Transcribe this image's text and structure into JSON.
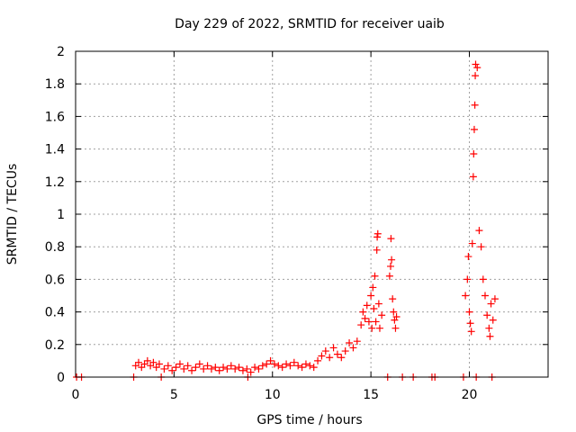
{
  "chart_data": {
    "type": "scatter",
    "title": "Day 229 of 2022, SRMTID for receiver uaib",
    "xlabel": "GPS time / hours",
    "ylabel": "SRMTID / TECUs",
    "xlim": [
      0,
      24
    ],
    "ylim": [
      0,
      2
    ],
    "x_ticks": [
      0,
      5,
      10,
      15,
      20
    ],
    "x_tick_labels": [
      "0",
      "5",
      "10",
      "15",
      "20"
    ],
    "y_ticks": [
      0,
      0.2,
      0.4,
      0.6,
      0.8,
      1,
      1.2,
      1.4,
      1.6,
      1.8,
      2
    ],
    "y_tick_labels": [
      "0",
      "0.2",
      "0.4",
      "0.6",
      "0.8",
      "1",
      "1.2",
      "1.4",
      "1.6",
      "1.8",
      "2"
    ],
    "grid": true,
    "marker": "plus",
    "color": "#ff0000",
    "series": [
      {
        "name": "SRMTID",
        "points": [
          [
            0.05,
            0.0
          ],
          [
            0.3,
            0.0
          ],
          [
            2.95,
            0.0
          ],
          [
            4.35,
            0.0
          ],
          [
            8.75,
            0.0
          ],
          [
            15.85,
            0.0
          ],
          [
            16.6,
            0.0
          ],
          [
            17.15,
            0.0
          ],
          [
            18.1,
            0.0
          ],
          [
            18.25,
            0.0
          ],
          [
            19.7,
            0.0
          ],
          [
            20.35,
            0.0
          ],
          [
            21.15,
            0.0
          ],
          [
            3.05,
            0.07
          ],
          [
            3.2,
            0.09
          ],
          [
            3.35,
            0.06
          ],
          [
            3.5,
            0.08
          ],
          [
            3.65,
            0.1
          ],
          [
            3.8,
            0.07
          ],
          [
            3.95,
            0.09
          ],
          [
            4.1,
            0.06
          ],
          [
            4.25,
            0.08
          ],
          [
            4.5,
            0.05
          ],
          [
            4.7,
            0.07
          ],
          [
            4.9,
            0.04
          ],
          [
            5.1,
            0.06
          ],
          [
            5.3,
            0.08
          ],
          [
            5.5,
            0.05
          ],
          [
            5.7,
            0.07
          ],
          [
            5.9,
            0.04
          ],
          [
            6.1,
            0.06
          ],
          [
            6.3,
            0.08
          ],
          [
            6.5,
            0.05
          ],
          [
            6.7,
            0.07
          ],
          [
            6.9,
            0.05
          ],
          [
            7.1,
            0.06
          ],
          [
            7.3,
            0.04
          ],
          [
            7.5,
            0.06
          ],
          [
            7.7,
            0.05
          ],
          [
            7.9,
            0.07
          ],
          [
            8.1,
            0.05
          ],
          [
            8.3,
            0.06
          ],
          [
            8.5,
            0.04
          ],
          [
            8.7,
            0.05
          ],
          [
            8.9,
            0.03
          ],
          [
            9.1,
            0.06
          ],
          [
            9.3,
            0.05
          ],
          [
            9.5,
            0.07
          ],
          [
            9.7,
            0.08
          ],
          [
            9.9,
            0.1
          ],
          [
            10.1,
            0.08
          ],
          [
            10.3,
            0.07
          ],
          [
            10.5,
            0.06
          ],
          [
            10.7,
            0.08
          ],
          [
            10.9,
            0.07
          ],
          [
            11.1,
            0.09
          ],
          [
            11.3,
            0.07
          ],
          [
            11.5,
            0.06
          ],
          [
            11.7,
            0.08
          ],
          [
            11.9,
            0.07
          ],
          [
            12.1,
            0.06
          ],
          [
            12.3,
            0.1
          ],
          [
            12.5,
            0.13
          ],
          [
            12.7,
            0.16
          ],
          [
            12.9,
            0.12
          ],
          [
            13.1,
            0.18
          ],
          [
            13.3,
            0.14
          ],
          [
            13.5,
            0.12
          ],
          [
            13.7,
            0.16
          ],
          [
            13.9,
            0.21
          ],
          [
            14.1,
            0.18
          ],
          [
            14.3,
            0.22
          ],
          [
            14.5,
            0.32
          ],
          [
            14.6,
            0.4
          ],
          [
            14.7,
            0.36
          ],
          [
            14.8,
            0.44
          ],
          [
            14.9,
            0.34
          ],
          [
            15.0,
            0.5
          ],
          [
            15.05,
            0.3
          ],
          [
            15.1,
            0.55
          ],
          [
            15.15,
            0.42
          ],
          [
            15.2,
            0.62
          ],
          [
            15.25,
            0.34
          ],
          [
            15.3,
            0.78
          ],
          [
            15.32,
            0.86
          ],
          [
            15.35,
            0.88
          ],
          [
            15.4,
            0.45
          ],
          [
            15.45,
            0.3
          ],
          [
            15.55,
            0.38
          ],
          [
            15.95,
            0.62
          ],
          [
            16.0,
            0.68
          ],
          [
            16.02,
            0.85
          ],
          [
            16.05,
            0.72
          ],
          [
            16.1,
            0.48
          ],
          [
            16.15,
            0.4
          ],
          [
            16.2,
            0.35
          ],
          [
            16.25,
            0.3
          ],
          [
            16.3,
            0.37
          ],
          [
            19.8,
            0.5
          ],
          [
            19.9,
            0.6
          ],
          [
            19.95,
            0.74
          ],
          [
            20.0,
            0.4
          ],
          [
            20.05,
            0.33
          ],
          [
            20.1,
            0.28
          ],
          [
            20.15,
            0.82
          ],
          [
            20.2,
            1.23
          ],
          [
            20.22,
            1.37
          ],
          [
            20.25,
            1.52
          ],
          [
            20.28,
            1.67
          ],
          [
            20.3,
            1.85
          ],
          [
            20.32,
            1.92
          ],
          [
            20.4,
            1.9
          ],
          [
            20.5,
            0.9
          ],
          [
            20.6,
            0.8
          ],
          [
            20.7,
            0.6
          ],
          [
            20.8,
            0.5
          ],
          [
            20.9,
            0.38
          ],
          [
            21.0,
            0.3
          ],
          [
            21.05,
            0.25
          ],
          [
            21.1,
            0.45
          ],
          [
            21.2,
            0.35
          ],
          [
            21.3,
            0.48
          ]
        ]
      }
    ]
  }
}
